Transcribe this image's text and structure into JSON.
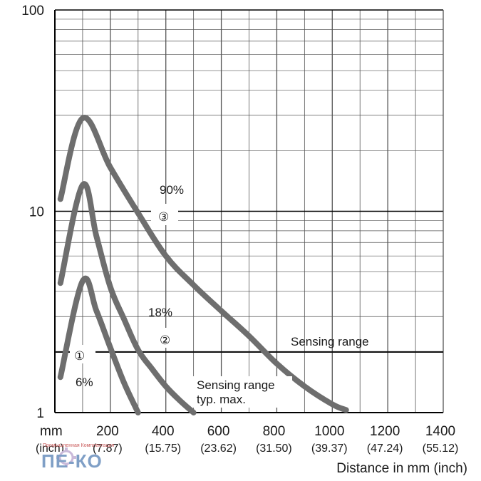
{
  "chart_data": {
    "type": "line",
    "y_scale": "log",
    "xlim": [
      0,
      1400
    ],
    "ylim": [
      1,
      100
    ],
    "grid": true,
    "xlabel": "Distance in mm (inch)",
    "x_unit_top": "mm",
    "x_unit_bottom": "(inch)",
    "x_ticks": [
      {
        "mm": 200,
        "mm_label": "200",
        "inch_label": "(7.87)"
      },
      {
        "mm": 400,
        "mm_label": "400",
        "inch_label": "(15.75)"
      },
      {
        "mm": 600,
        "mm_label": "600",
        "inch_label": "(23.62)"
      },
      {
        "mm": 800,
        "mm_label": "800",
        "inch_label": "(31.50)"
      },
      {
        "mm": 1000,
        "mm_label": "1000",
        "inch_label": "(39.37)"
      },
      {
        "mm": 1200,
        "mm_label": "1200",
        "inch_label": "(47.24)"
      },
      {
        "mm": 1400,
        "mm_label": "1400",
        "inch_label": "(55.12)"
      }
    ],
    "y_ticks": [
      {
        "value": 1,
        "label": "1"
      },
      {
        "value": 10,
        "label": "10"
      },
      {
        "value": 100,
        "label": "100"
      }
    ],
    "series": [
      {
        "name": "6%",
        "marker": "①",
        "x": [
          20,
          100,
          150,
          200,
          250,
          300
        ],
        "y": [
          1.5,
          4.5,
          3.2,
          2.1,
          1.4,
          1.0
        ]
      },
      {
        "name": "18%",
        "marker": "②",
        "x": [
          20,
          100,
          150,
          200,
          250,
          300,
          350,
          400,
          450,
          500
        ],
        "y": [
          4.4,
          13.5,
          7.5,
          4.2,
          2.9,
          2.05,
          1.65,
          1.35,
          1.15,
          1.0
        ]
      },
      {
        "name": "90%",
        "marker": "③",
        "x": [
          20,
          100,
          200,
          300,
          400,
          500,
          600,
          700,
          800,
          900,
          1000,
          1050
        ],
        "y": [
          11.5,
          29,
          16.5,
          9.8,
          6.0,
          4.3,
          3.2,
          2.4,
          1.75,
          1.35,
          1.1,
          1.03
        ]
      }
    ],
    "reference_lines": [
      {
        "y": 2,
        "label": "Sensing range"
      }
    ],
    "annotations": [
      {
        "text_line1": "Sensing range",
        "text_line2": "typ. max."
      }
    ]
  },
  "colors": {
    "curve": "#6e6e6e",
    "grid": "#555555",
    "axis": "#000000",
    "watermark": "#7f9fc6"
  },
  "watermark": {
    "text": "ПЕ-КО",
    "small_text": "Промышленная Комплектация"
  }
}
